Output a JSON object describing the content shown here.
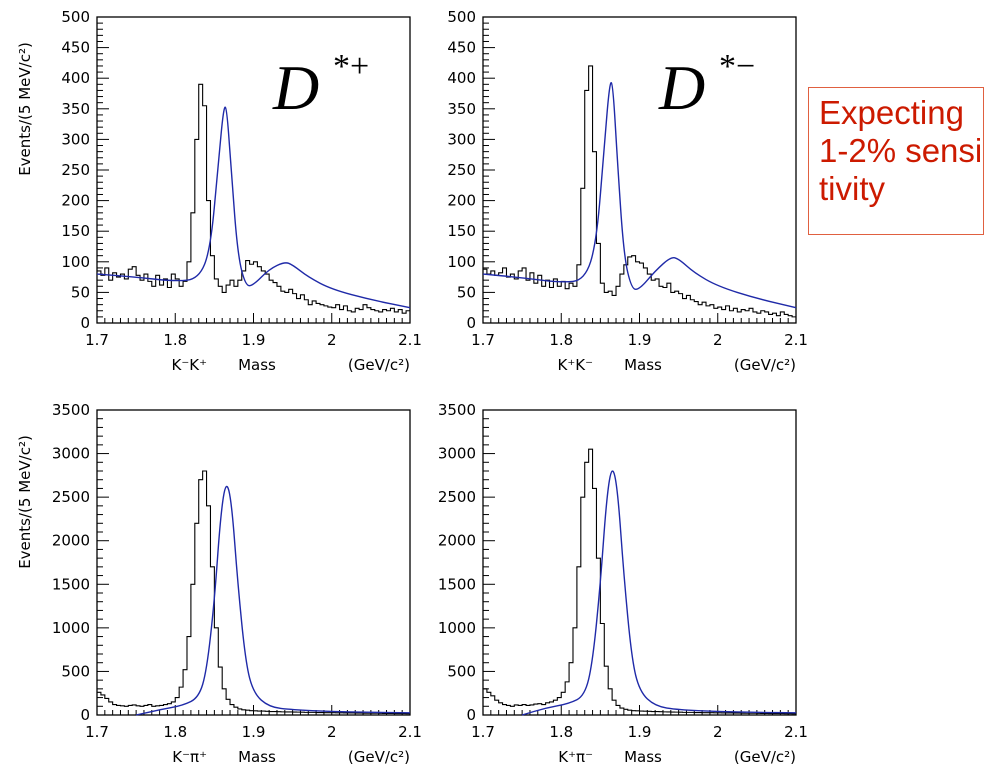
{
  "annotation": {
    "text": "Expecting 1-2% sensitivity",
    "color": "#cc1a00"
  },
  "colors": {
    "histogram": "#000000",
    "fit": "#1f2aa8"
  },
  "chart_data": [
    {
      "type": "line",
      "label": "D*+",
      "label_main": "D",
      "label_sup": "*+",
      "ylabel": "Events/(5 MeV/c²)",
      "xlabel_particles": "K⁻K⁺",
      "xlabel_mass": "Mass",
      "xlabel_units": "(GeV/c²)",
      "xlim": [
        1.7,
        2.1
      ],
      "ylim": [
        0,
        500
      ],
      "xticks": [
        1.7,
        1.8,
        1.9,
        2,
        2.1
      ],
      "xtick_labels": [
        "1.7",
        "1.8",
        "1.9",
        "2",
        "2.1"
      ],
      "yticks": [
        0,
        50,
        100,
        150,
        200,
        250,
        300,
        350,
        400,
        450,
        500
      ],
      "bin_width": 0.005,
      "histogram_start": 1.7,
      "histogram": [
        85,
        78,
        90,
        70,
        82,
        75,
        80,
        72,
        88,
        92,
        78,
        70,
        80,
        68,
        60,
        78,
        62,
        72,
        58,
        80,
        72,
        60,
        68,
        100,
        180,
        300,
        390,
        355,
        200,
        110,
        72,
        60,
        50,
        62,
        70,
        60,
        70,
        85,
        102,
        96,
        100,
        92,
        85,
        80,
        70,
        66,
        60,
        52,
        50,
        55,
        48,
        40,
        46,
        38,
        30,
        36,
        32,
        30,
        28,
        26,
        25,
        30,
        22,
        28,
        20,
        18,
        24,
        22,
        30,
        25,
        22,
        20,
        18,
        22,
        20,
        24,
        18,
        22,
        16,
        20
      ],
      "fit": {
        "x": [
          1.7,
          1.75,
          1.8,
          1.83,
          1.845,
          1.855,
          1.862,
          1.866,
          1.872,
          1.88,
          1.89,
          1.9,
          1.92,
          1.94,
          1.95,
          1.97,
          2.0,
          2.05,
          2.1
        ],
        "y": [
          80,
          75,
          68,
          72,
          120,
          260,
          355,
          350,
          240,
          110,
          60,
          62,
          88,
          100,
          95,
          75,
          55,
          38,
          25
        ]
      }
    },
    {
      "type": "line",
      "label": "D*−",
      "label_main": "D",
      "label_sup": "*−",
      "ylabel": "",
      "xlabel_particles": "K⁺K⁻",
      "xlabel_mass": "Mass",
      "xlabel_units": "(GeV/c²)",
      "xlim": [
        1.7,
        2.1
      ],
      "ylim": [
        0,
        500
      ],
      "xticks": [
        1.7,
        1.8,
        1.9,
        2,
        2.1
      ],
      "xtick_labels": [
        "1.7",
        "1.8",
        "1.9",
        "2",
        "2.1"
      ],
      "yticks": [
        0,
        50,
        100,
        150,
        200,
        250,
        300,
        350,
        400,
        450,
        500
      ],
      "bin_width": 0.005,
      "histogram_start": 1.7,
      "histogram": [
        88,
        80,
        85,
        78,
        82,
        90,
        75,
        80,
        72,
        85,
        90,
        70,
        82,
        65,
        78,
        60,
        70,
        58,
        72,
        60,
        68,
        56,
        65,
        60,
        95,
        220,
        380,
        420,
        280,
        130,
        65,
        50,
        52,
        45,
        60,
        80,
        95,
        108,
        110,
        100,
        98,
        90,
        80,
        70,
        72,
        60,
        58,
        65,
        50,
        52,
        48,
        40,
        45,
        38,
        35,
        30,
        34,
        28,
        30,
        24,
        26,
        22,
        28,
        20,
        24,
        18,
        22,
        20,
        24,
        18,
        16,
        20,
        18,
        14,
        16,
        12,
        18,
        14,
        12,
        10
      ],
      "fit": {
        "x": [
          1.7,
          1.75,
          1.8,
          1.83,
          1.845,
          1.855,
          1.862,
          1.866,
          1.872,
          1.88,
          1.89,
          1.9,
          1.92,
          1.94,
          1.95,
          1.97,
          2.0,
          2.05,
          2.1
        ],
        "y": [
          80,
          74,
          66,
          70,
          130,
          290,
          395,
          390,
          260,
          110,
          55,
          55,
          85,
          108,
          105,
          82,
          60,
          40,
          25
        ]
      }
    },
    {
      "type": "line",
      "label": "",
      "ylabel": "Events/(5 MeV/c²)",
      "xlabel_particles": "K⁻π⁺",
      "xlabel_mass": "Mass",
      "xlabel_units": "(GeV/c²)",
      "xlim": [
        1.7,
        2.1
      ],
      "ylim": [
        0,
        3500
      ],
      "xticks": [
        1.7,
        1.8,
        1.9,
        2,
        2.1
      ],
      "xtick_labels": [
        "1.7",
        "1.8",
        "1.9",
        "2",
        "2.1"
      ],
      "yticks": [
        0,
        500,
        1000,
        1500,
        2000,
        2500,
        3000,
        3500
      ],
      "bin_width": 0.005,
      "histogram_start": 1.7,
      "histogram": [
        260,
        230,
        190,
        150,
        120,
        110,
        105,
        100,
        110,
        115,
        105,
        100,
        110,
        120,
        100,
        105,
        110,
        120,
        130,
        150,
        200,
        320,
        520,
        900,
        1500,
        2200,
        2700,
        2800,
        2400,
        1700,
        1000,
        550,
        300,
        180,
        120,
        90,
        70,
        60,
        55,
        50,
        48,
        45,
        45,
        42,
        40,
        40,
        38,
        36,
        35,
        35,
        34,
        33,
        32,
        30,
        30,
        30,
        28,
        28,
        27,
        26,
        26,
        25,
        25,
        24,
        24,
        23,
        22,
        22,
        21,
        20,
        20,
        20,
        19,
        18,
        18,
        18,
        17,
        16,
        16,
        15
      ],
      "fit": {
        "x": [
          1.75,
          1.78,
          1.81,
          1.83,
          1.84,
          1.85,
          1.858,
          1.865,
          1.872,
          1.88,
          1.89,
          1.9,
          1.92,
          1.95,
          2.0,
          2.05,
          2.1
        ],
        "y": [
          0,
          60,
          110,
          200,
          500,
          1300,
          2300,
          2700,
          2450,
          1500,
          600,
          250,
          90,
          60,
          40,
          30,
          25
        ]
      }
    },
    {
      "type": "line",
      "label": "",
      "ylabel": "",
      "xlabel_particles": "K⁺π⁻",
      "xlabel_mass": "Mass",
      "xlabel_units": "(GeV/c²)",
      "xlim": [
        1.7,
        2.1
      ],
      "ylim": [
        0,
        3500
      ],
      "xticks": [
        1.7,
        1.8,
        1.9,
        2,
        2.1
      ],
      "xtick_labels": [
        "1.7",
        "1.8",
        "1.9",
        "2",
        "2.1"
      ],
      "yticks": [
        0,
        500,
        1000,
        1500,
        2000,
        2500,
        3000,
        3500
      ],
      "bin_width": 0.005,
      "histogram_start": 1.7,
      "histogram": [
        300,
        260,
        220,
        170,
        140,
        120,
        110,
        100,
        115,
        110,
        120,
        110,
        115,
        125,
        130,
        120,
        140,
        150,
        170,
        200,
        260,
        380,
        600,
        1000,
        1700,
        2500,
        2900,
        3050,
        2600,
        1800,
        1050,
        560,
        300,
        170,
        110,
        80,
        65,
        55,
        50,
        48,
        45,
        44,
        42,
        40,
        40,
        38,
        36,
        35,
        34,
        33,
        32,
        30,
        30,
        30,
        28,
        28,
        27,
        26,
        26,
        25,
        25,
        24,
        24,
        23,
        22,
        22,
        21,
        20,
        20,
        20,
        19,
        18,
        18,
        17,
        17,
        16,
        16,
        15,
        15,
        14
      ],
      "fit": {
        "x": [
          1.75,
          1.78,
          1.81,
          1.83,
          1.84,
          1.85,
          1.858,
          1.865,
          1.872,
          1.88,
          1.89,
          1.9,
          1.92,
          1.95,
          2.0,
          2.05,
          2.1
        ],
        "y": [
          0,
          80,
          130,
          220,
          600,
          1500,
          2500,
          2880,
          2600,
          1600,
          650,
          270,
          100,
          60,
          40,
          30,
          25
        ]
      }
    }
  ]
}
